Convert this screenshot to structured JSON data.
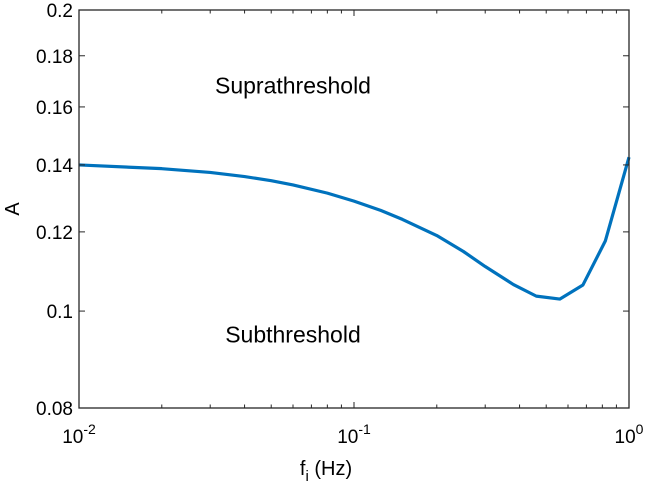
{
  "chart_data": {
    "type": "line",
    "xscale": "log",
    "yscale": "log",
    "xlim": [
      0.01,
      1
    ],
    "ylim": [
      0.08,
      0.2
    ],
    "grid": false,
    "xlabel_main": "f",
    "xlabel_sub": "i",
    "xlabel_unit": " (Hz)",
    "ylabel": "A",
    "x_ticks": [
      {
        "value": 0.01,
        "base": "10",
        "exp": "-2"
      },
      {
        "value": 0.1,
        "base": "10",
        "exp": "-1"
      },
      {
        "value": 1,
        "base": "10",
        "exp": "0"
      }
    ],
    "y_ticks": [
      {
        "value": 0.08,
        "label": "0.08"
      },
      {
        "value": 0.1,
        "label": "0.1"
      },
      {
        "value": 0.12,
        "label": "0.12"
      },
      {
        "value": 0.14,
        "label": "0.14"
      },
      {
        "value": 0.16,
        "label": "0.16"
      },
      {
        "value": 0.18,
        "label": "0.18"
      },
      {
        "value": 0.2,
        "label": "0.2"
      }
    ],
    "annotations": [
      {
        "text": "Suprathreshold",
        "x": 0.06,
        "y": 0.165
      },
      {
        "text": "Subthreshold",
        "x": 0.06,
        "y": 0.093
      }
    ],
    "series": [
      {
        "color": "#0072BD",
        "x": [
          0.01,
          0.02,
          0.03,
          0.04,
          0.05,
          0.06,
          0.08,
          0.1,
          0.125,
          0.15,
          0.2,
          0.25,
          0.3,
          0.38,
          0.46,
          0.56,
          0.68,
          0.82,
          1.0
        ],
        "y": [
          0.14,
          0.1388,
          0.1376,
          0.1363,
          0.135,
          0.1337,
          0.1312,
          0.1288,
          0.1261,
          0.1235,
          0.119,
          0.1147,
          0.1108,
          0.1063,
          0.1035,
          0.1028,
          0.1062,
          0.1175,
          0.1425
        ]
      }
    ]
  }
}
